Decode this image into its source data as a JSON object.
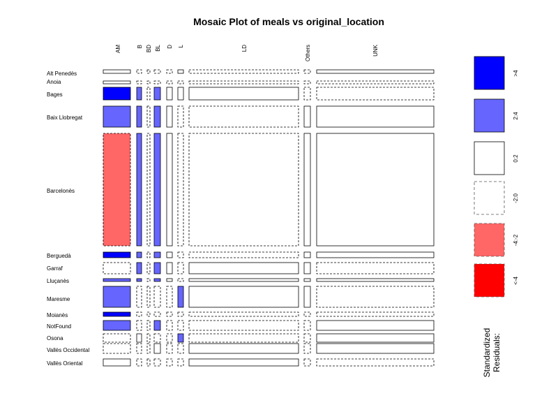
{
  "chart_data": {
    "type": "mosaic",
    "title": "Mosaic Plot of meals vs original_location",
    "columns": [
      "AM",
      "B",
      "BD",
      "BL",
      "D",
      "L",
      "LD",
      "Others",
      "UNK"
    ],
    "rows": [
      "Alt Penedès",
      "Anoia",
      "Bages",
      "Baix Llobregat",
      "Barcelonès",
      "Berguedà",
      "Garraf",
      "Lluçanès",
      "Maresme",
      "Moianès",
      "NotFound",
      "Osona",
      "Vallès Occidental",
      "Vallès Oriental"
    ],
    "residual_bands": [
      {
        "label": ">4",
        "color": "#0000FF",
        "dashed": false
      },
      {
        "label": "2:4",
        "color": "#6666FF",
        "dashed": false
      },
      {
        "label": "0:2",
        "color": "#FFFFFF",
        "dashed": false
      },
      {
        "label": "-2:0",
        "color": "#FFFFFF",
        "dashed": true
      },
      {
        "label": "-4:-2",
        "color": "#FF6666",
        "dashed": true
      },
      {
        "label": "<-4",
        "color": "#FF0000",
        "dashed": true
      }
    ],
    "legend_title_line1": "Standardized",
    "legend_title_line2": "Residuals:",
    "cells": [
      [
        "0:2",
        "-2:0",
        "-2:0",
        "-2:0",
        "-2:0",
        "0:2",
        "-2:0",
        "-2:0",
        "0:2"
      ],
      [
        "0:2",
        "-2:0",
        "-2:0",
        "-2:0",
        "-2:0",
        "-2:0",
        "-2:0",
        "-2:0",
        "-2:0"
      ],
      [
        ">4",
        "2:4",
        "-2:0",
        "2:4",
        "0:2",
        "0:2",
        "0:2",
        "-2:0",
        "-2:0"
      ],
      [
        "2:4",
        "2:4",
        "-2:0",
        "2:4",
        "0:2",
        "-2:0",
        "-2:0",
        "0:2",
        "0:2"
      ],
      [
        "-4:-2",
        "2:4",
        "-2:0",
        "2:4",
        "0:2",
        "-2:0",
        "-2:0",
        "0:2",
        "0:2"
      ],
      [
        ">4",
        "2:4",
        "-2:0",
        "2:4",
        "0:2",
        "-2:0",
        "-2:0",
        "0:2",
        "0:2"
      ],
      [
        "-2:0",
        "2:4",
        "-2:0",
        "2:4",
        "0:2",
        "-2:0",
        "0:2",
        "0:2",
        "-2:0"
      ],
      [
        "2:4",
        "2:4",
        "-2:0",
        "2:4",
        "0:2",
        "-2:0",
        "0:2",
        "0:2",
        "0:2"
      ],
      [
        "2:4",
        "-2:0",
        "-2:0",
        "-2:0",
        "-2:0",
        "2:4",
        "0:2",
        "0:2",
        "-2:0"
      ],
      [
        ">4",
        "-2:0",
        "-2:0",
        "-2:0",
        "-2:0",
        "-2:0",
        "-2:0",
        "-2:0",
        "-2:0"
      ],
      [
        "2:4",
        "-2:0",
        "-2:0",
        "2:4",
        "-2:0",
        "-2:0",
        "-2:0",
        "-2:0",
        "0:2"
      ],
      [
        "-2:0",
        "0:2",
        "-2:0",
        "-2:0",
        "-2:0",
        "2:4",
        "-2:0",
        "-2:0",
        "0:2"
      ],
      [
        "-2:0",
        "-2:0",
        "-2:0",
        "0:2",
        "-2:0",
        "-2:0",
        "0:2",
        "-2:0",
        "0:2"
      ],
      [
        "0:2",
        "-2:0",
        "-2:0",
        "-2:0",
        "-2:0",
        "-2:0",
        "0:2",
        "-2:0",
        "-2:0"
      ]
    ]
  }
}
